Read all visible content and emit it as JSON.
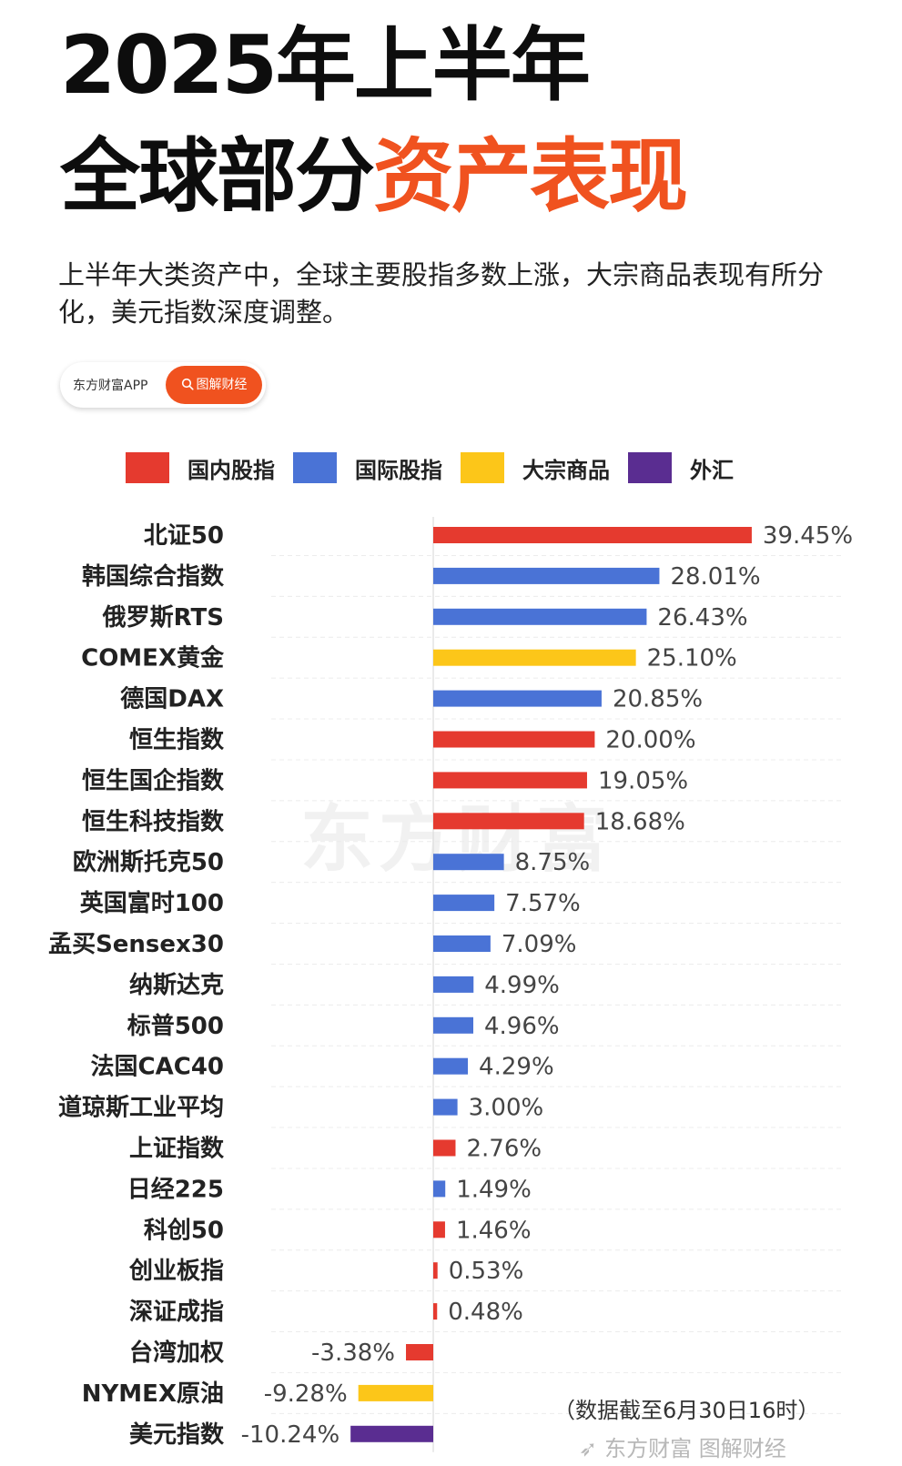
{
  "header": {
    "title_line1": "2025年上半年",
    "title_line2_prefix": "全球部分",
    "title_line2_accent": "资产表现",
    "subtitle": "上半年大类资产中，全球主要股指多数上涨，大宗商品表现有所分化，美元指数深度调整。"
  },
  "brand": {
    "app_name": "东方财富APP",
    "tag_label": "图解财经",
    "tag_icon": "search-icon"
  },
  "colors": {
    "accent": "#f0521f",
    "domestic": "#e53a2f",
    "international": "#4a73d6",
    "commodity": "#fcc619",
    "forex": "#5a2d91"
  },
  "legend": [
    {
      "label": "国内股指",
      "category": "domestic"
    },
    {
      "label": "国际股指",
      "category": "international"
    },
    {
      "label": "大宗商品",
      "category": "commodity"
    },
    {
      "label": "外汇",
      "category": "forex"
    }
  ],
  "chart_data": {
    "type": "bar",
    "orientation": "horizontal",
    "value_format": "percent",
    "grid": true,
    "legend_placement": "top",
    "title": "",
    "xlabel": "",
    "ylabel": "",
    "xlim": [
      -15,
      45
    ],
    "categories": [
      "北证50",
      "韩国综合指数",
      "俄罗斯RTS",
      "COMEX黄金",
      "德国DAX",
      "恒生指数",
      "恒生国企指数",
      "恒生科技指数",
      "欧洲斯托克50",
      "英国富时100",
      "孟买Sensex30",
      "纳斯达克",
      "标普500",
      "法国CAC40",
      "道琼斯工业平均",
      "上证指数",
      "日经225",
      "科创50",
      "创业板指",
      "深证成指",
      "台湾加权",
      "NYMEX原油",
      "美元指数"
    ],
    "values": [
      39.45,
      28.01,
      26.43,
      25.1,
      20.85,
      20.0,
      19.05,
      18.68,
      8.75,
      7.57,
      7.09,
      4.99,
      4.96,
      4.29,
      3.0,
      2.76,
      1.49,
      1.46,
      0.53,
      0.48,
      -3.38,
      -9.28,
      -10.24
    ],
    "labels": [
      "39.45%",
      "28.01%",
      "26.43%",
      "25.10%",
      "20.85%",
      "20.00%",
      "19.05%",
      "18.68%",
      "8.75%",
      "7.57%",
      "7.09%",
      "4.99%",
      "4.96%",
      "4.29%",
      "3.00%",
      "2.76%",
      "1.49%",
      "1.46%",
      "0.53%",
      "0.48%",
      "-3.38%",
      "-9.28%",
      "-10.24%"
    ],
    "groups": [
      "domestic",
      "international",
      "international",
      "commodity",
      "international",
      "domestic",
      "domestic",
      "domestic",
      "international",
      "international",
      "international",
      "international",
      "international",
      "international",
      "international",
      "domestic",
      "international",
      "domestic",
      "domestic",
      "domestic",
      "domestic",
      "commodity",
      "forex"
    ]
  },
  "watermark": "东方财富",
  "note": "（数据截至6月30日16时）",
  "footer": {
    "brand": "东方财富",
    "section": "图解财经"
  }
}
